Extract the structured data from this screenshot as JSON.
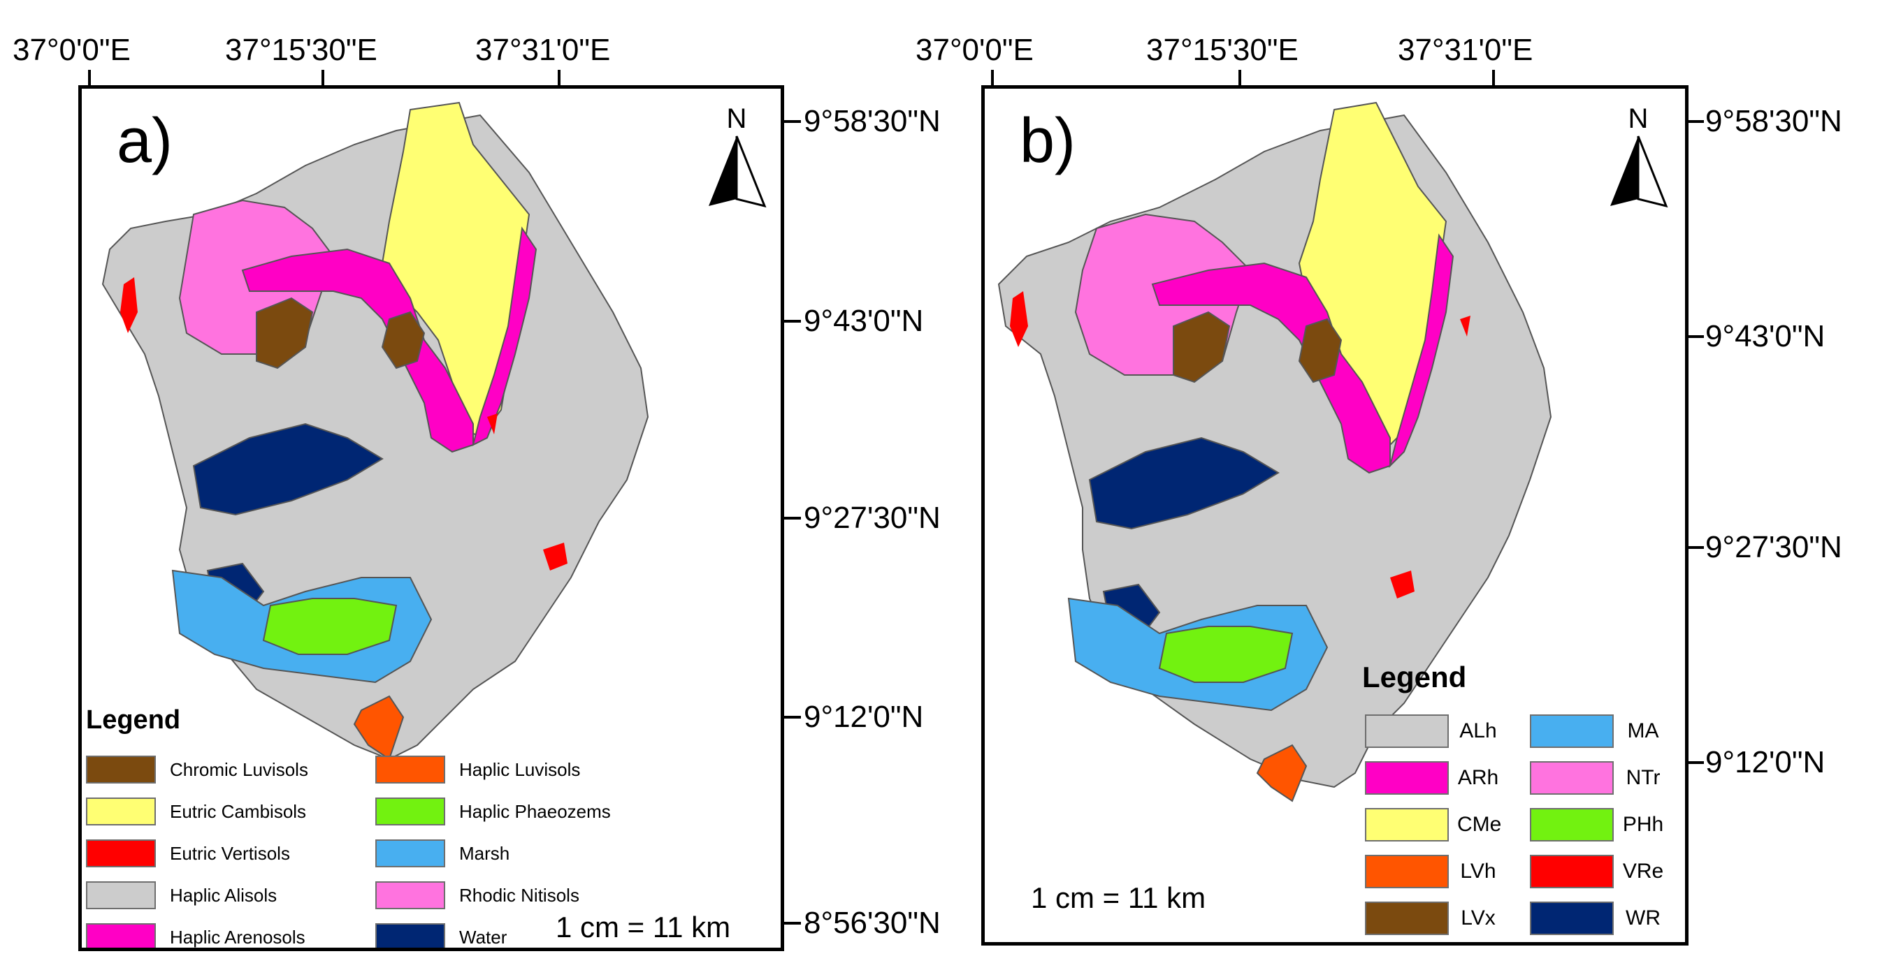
{
  "panel_a": {
    "label": "a)",
    "top_coords": [
      "37°0'0\"E",
      "37°15'30\"E",
      "37°31'0\"E"
    ],
    "right_coords": [
      "9°58'30\"N",
      "9°43'0\"N",
      "9°27'30\"N",
      "9°12'0\"N",
      "8°56'30\"N"
    ],
    "north_label": "N",
    "scale_text": "1 cm = 11 km",
    "legend": {
      "title": "Legend",
      "items": [
        {
          "label": "Chromic Luvisols",
          "color": "#7b4a0f"
        },
        {
          "label": "Eutric Cambisols",
          "color": "#ffff73"
        },
        {
          "label": "Eutric Vertisols",
          "color": "#ff0000"
        },
        {
          "label": "Haplic Alisols",
          "color": "#cccccc"
        },
        {
          "label": "Haplic Arenosols",
          "color": "#ff00c5"
        },
        {
          "label": "Haplic Luvisols",
          "color": "#ff5500"
        },
        {
          "label": "Haplic Phaeozems",
          "color": "#72f210"
        },
        {
          "label": "Marsh",
          "color": "#48aff0"
        },
        {
          "label": "Rhodic Nitisols",
          "color": "#ff73df"
        },
        {
          "label": "Water",
          "color": "#002673"
        }
      ]
    }
  },
  "panel_b": {
    "label": "b)",
    "top_coords": [
      "37°0'0\"E",
      "37°15'30\"E",
      "37°31'0\"E"
    ],
    "right_coords": [
      "9°58'30\"N",
      "9°43'0\"N",
      "9°27'30\"N",
      "9°12'0\"N"
    ],
    "north_label": "N",
    "scale_text": "1 cm = 11 km",
    "legend": {
      "title": "Legend",
      "items": [
        {
          "label": "ALh",
          "color": "#cccccc"
        },
        {
          "label": "ARh",
          "color": "#ff00c5"
        },
        {
          "label": "CMe",
          "color": "#ffff73"
        },
        {
          "label": "LVh",
          "color": "#ff5500"
        },
        {
          "label": "LVx",
          "color": "#7b4a0f"
        },
        {
          "label": "MA",
          "color": "#48aff0"
        },
        {
          "label": "NTr",
          "color": "#ff73df"
        },
        {
          "label": "PHh",
          "color": "#72f210"
        },
        {
          "label": "VRe",
          "color": "#ff0000"
        },
        {
          "label": "WR",
          "color": "#002673"
        }
      ]
    }
  }
}
